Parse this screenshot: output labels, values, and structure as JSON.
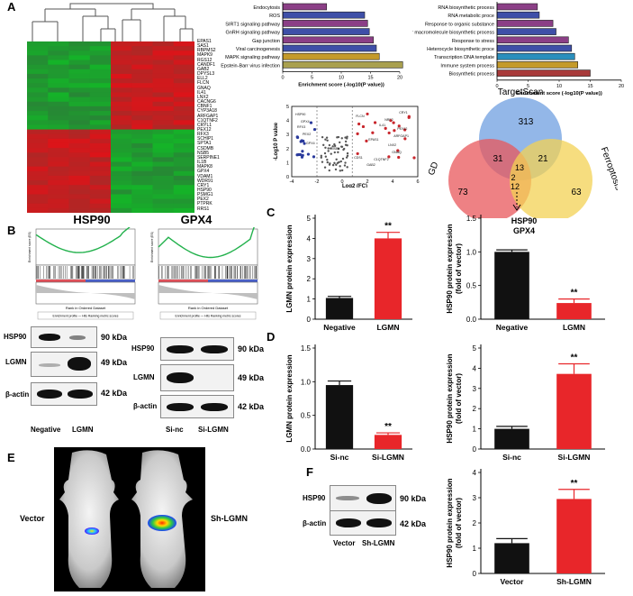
{
  "panel_labels": {
    "A": "A",
    "B": "B",
    "C": "C",
    "D": "D",
    "E": "E",
    "F": "F"
  },
  "heatmap": {
    "genes": [
      "EPAS1",
      "SAS1",
      "RBPMS2",
      "MAPK9",
      "RGS12",
      "CANDF1",
      "GAB2",
      "DPYSL3",
      "ELL2",
      "FLCN",
      "GNAQ",
      "IL41",
      "LNX2",
      "CACNG6",
      "CBNF1",
      "CYP3A18",
      "ARFGAP1",
      "C1QTNF2",
      "CRYL1",
      "PEX12",
      "RFX3",
      "SCHIP1",
      "SPTA1",
      "CSDMB",
      "NSB5",
      "SERPINE1",
      "IL1B",
      "MAPK8",
      "GPX4",
      "VDAM1",
      "WDR91",
      "CRY1",
      "HSP90",
      "PSMG1",
      "PEX2",
      "PTPRK",
      "RRS1"
    ]
  },
  "enrich_left": {
    "terms": [
      "Endocytosis",
      "ROS",
      "SIRT1 signaling pathway",
      "GnRH signaling pathway",
      "Gap junction",
      "Viral carcinogenesis",
      "MAPK signaling pathway",
      "Epstein-Barr virus infection"
    ],
    "xlabel": "Enrichment score (-log10(P value))",
    "ticks": [
      "0",
      "5",
      "10",
      "15",
      "20"
    ]
  },
  "enrich_right": {
    "terms": [
      "RNA biosynthetic process",
      "RNA metabolic proce",
      "Response to organic substance",
      "Cellular macromolecule biosynthetic process",
      "Response to stress",
      "Heterocycle biosynthetic proce",
      "Transcription DNA template",
      "Immune system process",
      "Biosynthetic process"
    ],
    "xlabel": "Enrichment score (-log10(P value))",
    "ticks": [
      "0",
      "5",
      "10",
      "15",
      "20"
    ]
  },
  "volcano": {
    "ylabel": "-Log10 P value",
    "xlabel": "Log2 (FC)",
    "xticks": [
      "-4",
      "-2",
      "0",
      "2",
      "4",
      "6"
    ],
    "yticks": [
      "0",
      "1",
      "2",
      "3",
      "4",
      "5"
    ],
    "labels": [
      "HSP90",
      "GPX4",
      "RFX3",
      "PEX2",
      "FLCN",
      "CRY1",
      "NRF2",
      "IL41",
      "PEX12",
      "GPX4",
      "ARFGAP1",
      "EPAS1",
      "LNX2",
      "GNAQ",
      "C1QTNF2",
      "GAB2",
      "CDS1",
      "NSB5"
    ]
  },
  "venn": {
    "sets": [
      "TargetScan",
      "GD",
      "Ferroptosis"
    ],
    "counts": {
      "top": "313",
      "left": "73",
      "right": "63",
      "top_left": "31",
      "top_right": "21",
      "center_top": "13",
      "center_mid": "2",
      "bottom": "12"
    },
    "result_line1": "HSP90",
    "result_line2": "GPX4"
  },
  "gsea": {
    "left_title": "HSP90",
    "right_title": "GPX4",
    "ylabel_es": "Enrichment score (ES)",
    "xlabel": "Rank in Ordered Dataset",
    "legend": "Enrichment profile — Hits    Ranking metric scores"
  },
  "blot_b_left": {
    "rows": [
      "HSP90",
      "LGMN",
      "β-actin"
    ],
    "sizes": [
      "90 kDa",
      "49 kDa",
      "42 kDa"
    ],
    "lanes": [
      "Negative",
      "LGMN"
    ]
  },
  "blot_b_right": {
    "rows": [
      "HSP90",
      "LGMN",
      "β-actin"
    ],
    "sizes": [
      "90 kDa",
      "49 kDa",
      "42 kDa"
    ],
    "lanes": [
      "Si-nc",
      "Si-LGMN"
    ]
  },
  "mice": {
    "label_left": "Vector",
    "label_right": "Sh-LGMN"
  },
  "blot_f": {
    "rows": [
      "HSP90",
      "β-actin"
    ],
    "sizes": [
      "90 kDa",
      "42 kDa"
    ],
    "lanes": [
      "Vector",
      "Sh-LGMN"
    ]
  },
  "colors": {
    "control": "#111111",
    "treat": "#e8262a",
    "heat_red": "#c8262c",
    "heat_green": "#27a644"
  },
  "chart_data": [
    {
      "id": "C1",
      "type": "bar",
      "ylabel": "LGMN protein expression",
      "categories": [
        "Negative",
        "LGMN"
      ],
      "values": [
        1.05,
        4.0
      ],
      "errors": [
        0.08,
        0.3
      ],
      "ylim": [
        0,
        5
      ],
      "yticks": [
        "0",
        "1",
        "2",
        "3",
        "4",
        "5"
      ],
      "annotations": [
        "",
        "**"
      ]
    },
    {
      "id": "C2",
      "type": "bar",
      "ylabel": "HSP90 protein expression (fold of vector)",
      "categories": [
        "Negative",
        "LGMN"
      ],
      "values": [
        1.0,
        0.24
      ],
      "errors": [
        0.03,
        0.06
      ],
      "ylim": [
        0,
        1.5
      ],
      "yticks": [
        "0.0",
        "0.5",
        "1.0",
        "1.5"
      ],
      "annotations": [
        "",
        "**"
      ]
    },
    {
      "id": "D1",
      "type": "bar",
      "ylabel": "LGMN protein expression",
      "categories": [
        "Si-nc",
        "Si-LGMN"
      ],
      "values": [
        0.95,
        0.21
      ],
      "errors": [
        0.06,
        0.03
      ],
      "ylim": [
        0,
        1.5
      ],
      "yticks": [
        "0.0",
        "0.5",
        "1.0",
        "1.5"
      ],
      "annotations": [
        "",
        "**"
      ]
    },
    {
      "id": "D2",
      "type": "bar",
      "ylabel": "HSP90 protein expression (fold of vector)",
      "categories": [
        "Si-nc",
        "Si-LGMN"
      ],
      "values": [
        1.0,
        3.72
      ],
      "errors": [
        0.12,
        0.5
      ],
      "ylim": [
        0,
        5
      ],
      "yticks": [
        "0",
        "1",
        "2",
        "3",
        "4",
        "5"
      ],
      "annotations": [
        "",
        "**"
      ]
    },
    {
      "id": "F",
      "type": "bar",
      "ylabel": "HSP90 protein expression (fold of vector)",
      "categories": [
        "Vector",
        "Sh-LGMN"
      ],
      "values": [
        1.2,
        2.95
      ],
      "errors": [
        0.18,
        0.38
      ],
      "ylim": [
        0,
        4
      ],
      "yticks": [
        "0",
        "1",
        "2",
        "3",
        "4"
      ],
      "annotations": [
        "",
        "**"
      ]
    },
    {
      "id": "A-left",
      "type": "bar",
      "orientation": "horizontal",
      "xlabel": "Enrichment score (-log10(P value))",
      "categories": [
        "Endocytosis",
        "ROS",
        "SIRT1 signaling pathway",
        "GnRH signaling pathway",
        "Gap junction",
        "Viral carcinogenesis",
        "MAPK signaling pathway",
        "Epstein-Barr virus infection"
      ],
      "values": [
        7.5,
        14,
        14.5,
        14.8,
        15.5,
        16,
        16.5,
        20.5
      ],
      "xlim": [
        0,
        20
      ]
    },
    {
      "id": "A-right",
      "type": "bar",
      "orientation": "horizontal",
      "xlabel": "Enrichment score (-log10(P value))",
      "categories": [
        "RNA biosynthetic process",
        "RNA metabolic proce",
        "Response to organic substance",
        "Cellular macromolecule biosynthetic process",
        "Response to stress",
        "Heterocycle biosynthetic proce",
        "Transcription DNA template",
        "Immune system process",
        "Biosynthetic process"
      ],
      "values": [
        6.5,
        6.8,
        9.0,
        9.5,
        11.5,
        12,
        12.5,
        13,
        15
      ],
      "xlim": [
        0,
        20
      ]
    }
  ]
}
